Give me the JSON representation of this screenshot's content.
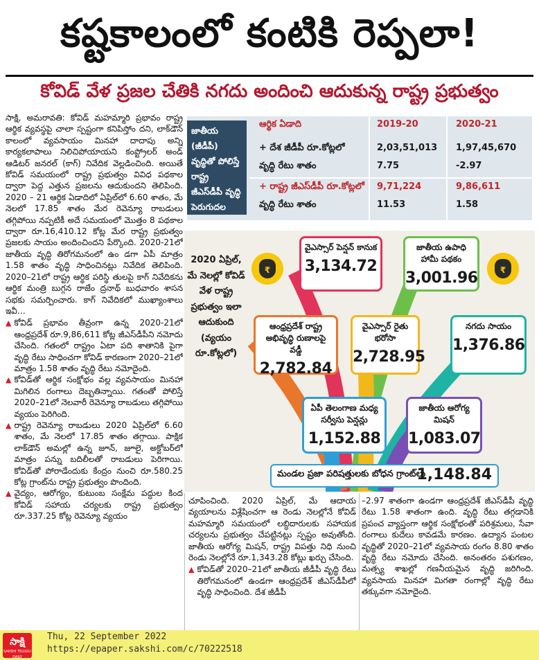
{
  "headline": "కష్టకాలంలో కంటికి రెప్పలా!",
  "subheadline": "కోవిడ్ వేళ ప్రజల చేతికి నగదు అందించి ఆదుకున్న రాష్ట్ర ప్రభుత్వం",
  "article": {
    "left_paragraphs": [
      "సాక్షి, అమరావతి: కోవిడ్ మహమ్మారి ప్రభావం రాష్ట్ర ఆర్థిక వ్యవస్థపై చాలా స్పష్టంగా కనిపిస్తోం దని, లాక్‌డౌన్ కాలంలో వ్యవసాయం మినహా దాదాపు అన్ని కార్యకలాపాలు నిలిచిపోయాయని కంప్ట్రోలర్ అండ్ ఆడిటర్ జనరల్ (కాగ్) నివేదిక వెల్లడించింది. అయితే కోవిడ్ సమయంలో రాష్ట్ర ప్రభుత్వం వివిధ పథకాల ద్వారా పెద్ద ఎత్తున ప్రజలను ఆదుకుందని తెలిపింది. 2020 – 21 ఆర్థిక ఏడాదిలో ఏప్రిల్‌లో 6.60 శాతం, మే నెలలో 17.85 శాతం మేర రెవెన్యూ రాబడులు తగ్గిపోయి నప్పటికీ అదే సమయంలో మొత్తం 8 పథకాల ద్వారా రూ.16,410.12 కోట్ల మేర రాష్ట్ర ప్రభుత్వం ప్రజలకు సాయం అందించిందని పేర్కొంది. 2020-21లో జాతీయ వృద్ధి తిరోగమనంలో ఉం డగా ఏపీ మాత్రం 1.58 శాతం వృద్ధి సాధించినట్లు నివేదిక తెలిపింది. 2020–21లో రాష్ట్ర ఆర్థిక పరిస్థి తులపై కాగ్ నివేదికను ఆర్థిక మంత్రి బుగ్గన రాజేం ద్రనాథ్ బుధవారం శాసన సభకు సమర్పించారు. కాగ్ నివేదికలో ముఖ్యాంశాలు ఇవీ…"
    ],
    "left_bullets": [
      "కోవిడ్ ప్రభావం తీవ్రంగా ఉన్న 2020-21లో ఆంధ్రప్రదేశ్ రూ.9,86,611 కోట్ల జీఎస్‌డీపీని నమోదు చేసింది. గతంలో రాష్ట్రం ఏటా పది శాతానికి పైగా వృద్ధి రేటు సాధించగా కోవిడ్ కారణంగా 2020–21లో మాత్రం 1.58 శాతం వృద్ధి రేటు నమోదైంది.",
      "కోవిడ్‌తో ఆర్థిక సంక్షోభం వల్ల వ్యవసాయం మినహా మిగిలిన రంగాలు దెబ్బతిన్నాయి. గతంతో పోలిస్తే 2020–21లో నెలవారీ రెవెన్యూ రాబడులు తగ్గిపోయి వ్యయం పెరిగింది.",
      "రాష్ట్ర రెవెన్యూ రాబడులు 2020 ఏప్రిల్‌లో 6.60 శాతం, మే నెలలో 17.85 శాతం తగ్గాయి. పాక్షిక లాక్‌డౌన్ అమల్లో ఉన్న జూన్, జూలై, అక్టోబర్‌లో మాత్రం పన్ను బదిలీలతో రాబడులు పెరిగాయి. కోవిడ్‌తో పోరాడేందుకు కేంద్రం నుంచి రూ.580.25 కోట్ల గ్రాంట్‌ను రాష్ట్ర ప్రభుత్వం పొందింది.",
      "వైద్యం, ఆరోగ్యం, కుటుంబ సంక్షేమ పద్దుల కింద కోవిడ్ సహాయ చర్యలకు రాష్ట్ర ప్రభుత్వం రూ.337.25 కోట్ల రెవెన్యూ వ్యయం"
    ],
    "mid_text": "చూపించింది. 2020 ఏప్రిల్, మే ఆదాయ వ్యయాలను విశ్లేషించగా ఆ రెండు నెలల్లోనే కోవిడ్ మహమ్మారి సమయంలో లబ్ధిదారులకు సహాయక చర్యలను ప్రభుత్వం చేపట్టినట్లు స్పష్టం అవుతోంది. జాతీయ ఆరోగ్య మిషన్, రాష్ట్ర విపత్తు నిధి నుంచి రెండు నెలల్లోనే రూ.1,343.28 కోట్లు ఖర్చు చేసింది.",
    "mid_bullet": "కోవిడ్‌తో 2020–21లో జాతీయ జీడీపీ వృద్ధి రేటు తిరోగమనంలో ఉండగా ఆంధ్రప్రదేశ్ జీఎస్‌డీపీలో వృద్ధి సాధించింది. దేశ జీడీపీ",
    "right_text": "–2.97 శాతంగా ఉండగా ఆంధ్రప్రదేశ్ జీఎస్‌డీపీ వృద్ధి రేటు 1.58 శాతంగా ఉంది. వృద్ధి రేటు తగ్గడానికి ప్రపంచ వ్యాప్తంగా ఆర్థిక సంక్షోభంతో పరిశ్రమలు, సేవా రంగాలు కుదేలు కావడమే కారణం. ఉద్యాన పంటల వృద్ధితో 2020–21లో వ్యవసాయ రంగం 8.80 శాతం వృద్ధి రేటు నమోదు చేసింది. అనంతరం పశుగణం, మత్స్య శాఖల్లో గణనీయమైన వృద్ధి జరిగింది. వ్యవసాయ మినహా మిగతా రంగాల్లో వృద్ధి రేటు తక్కువగా నమోదైంది."
  },
  "table": {
    "caption": "జాతీయ (జీడీపీ) వృద్ధితో పోలిస్తే రాష్ట్ర జీఎస్‌డీపీ వృద్ధి పెరుగుదల ఇలా",
    "header_label": "ఆర్థిక ఏడాది",
    "years": [
      "2019-20",
      "2020-21"
    ],
    "rows": [
      {
        "label": "+ దేశ జీడీపీ రూ.కోట్లలో",
        "v1": "2,03,51,013",
        "v2": "1,97,45,670",
        "red": false
      },
      {
        "label": "వృద్ధి రేటు శాతం",
        "v1": "7.75",
        "v2": "-2.97",
        "red": false
      },
      {
        "label": "+ రాష్ట్ర జీఎస్‌డీపీ రూ.కోట్లలో",
        "v1": "9,71,224",
        "v2": "9,86,611",
        "red": true
      },
      {
        "label": "వృద్ధి రేటు శాతం",
        "v1": "11.53",
        "v2": "1.58",
        "red": false
      }
    ]
  },
  "infographic": {
    "side_text": "2020 ఏప్రిల్, మే నెలల్లో కోవిడ్ వేళ రాష్ట్ర ప్రభుత్వం ఇలా ఆదుకుంది (వ్యయం రూ.కోట్లలో)",
    "cards": [
      {
        "label": "వైఎస్సార్ పెన్షన్ కానుక",
        "value": "3,134.72",
        "color": "#e2335a"
      },
      {
        "label": "జాతీయ ఉపాధి హామీ పథకం",
        "value": "3,001.96",
        "color": "#6cc04a"
      },
      {
        "label": "ఆంధ్రప్రదేశ్ రాష్ట్ర అభివృద్ధి రుణాలపై వడ్డీ",
        "value": "2,782.84",
        "color": "#e8762b"
      },
      {
        "label": "వైఎస్సార్ రైతు భరోసా",
        "value": "2,728.95",
        "color": "#f2b81b"
      },
      {
        "label": "నగదు సాయం",
        "value": "1,376.86",
        "color": "#1fb3a6"
      },
      {
        "label": "ఏపీ తెలంగాణ మధ్య సర్వీసు పెన్షన్లు",
        "value": "1,152.88",
        "color": "#2e9fd6"
      },
      {
        "label": "జాతీయ ఆరోగ్య మిషన్",
        "value": "1,083.07",
        "color": "#7a4fb5"
      }
    ],
    "grant_label": "మండల ప్రజా పరిషత్తులకు బోధన గ్రాంట్‌లు",
    "grant_value": "1,148.84",
    "bag_symbol": "₹",
    "bag_icon": "money-bag-icon"
  },
  "footer": {
    "logo": "సాక్షి",
    "logo_sub": "SAKSHI TELUGU DAILY",
    "date": "Thu, 22 September 2022",
    "url": "https://epaper.sakshi.com/c/70222518"
  }
}
